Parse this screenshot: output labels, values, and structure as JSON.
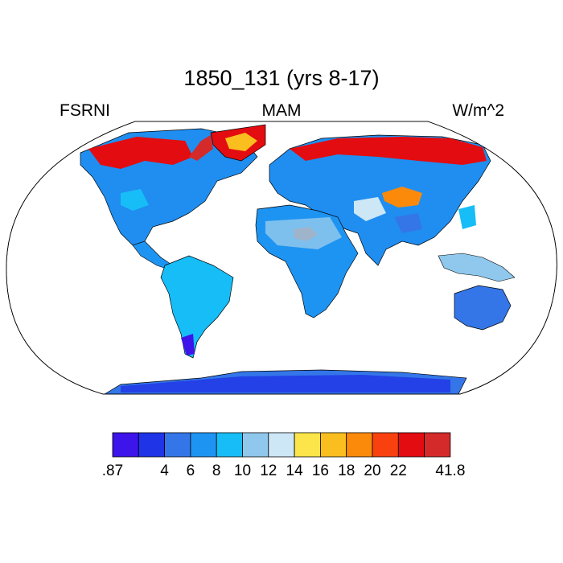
{
  "title": "1850_131 (yrs 8-17)",
  "left_label": "FSRNI",
  "center_label": "MAM",
  "right_label": "W/m^2",
  "colorbar": {
    "colors": [
      "#3d14ea",
      "#1f34e6",
      "#3476e8",
      "#1e94f2",
      "#17bdf7",
      "#8fc8ec",
      "#cde7f7",
      "#fbe54a",
      "#fbbe1f",
      "#fb8a0b",
      "#f8410f",
      "#e30c10",
      "#d42a2a"
    ],
    "labels": [
      ".87",
      "4",
      "6",
      "8",
      "10",
      "12",
      "14",
      "16",
      "18",
      "20",
      "22",
      "41.8"
    ]
  },
  "palette": {
    "land_base": "#1f8ef0",
    "ocean": "#ffffff",
    "coast": "#000000"
  }
}
